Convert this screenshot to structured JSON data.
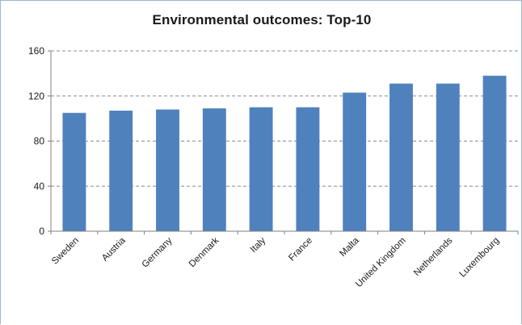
{
  "chart_data": {
    "type": "bar",
    "title": "Environmental outcomes: Top-10",
    "xlabel": "",
    "ylabel": "",
    "categories": [
      "Sweden",
      "Austria",
      "Germany",
      "Denmark",
      "Italy",
      "France",
      "Malta",
      "United Kingdom",
      "Netherlands",
      "Luxembourg"
    ],
    "values": [
      105,
      107,
      108,
      109,
      110,
      110,
      123,
      131,
      131,
      138
    ],
    "ylim": [
      0,
      160
    ],
    "yticks": [
      0,
      40,
      80,
      120,
      160
    ],
    "grid": true,
    "bar_color": "#4f81bd",
    "grid_color": "#8c8c8c",
    "legend": "none"
  }
}
